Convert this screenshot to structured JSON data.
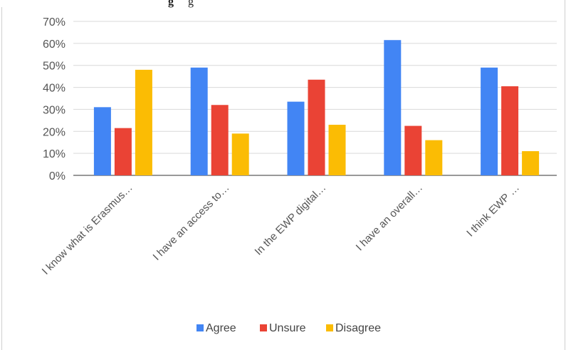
{
  "header_fragment": {
    "bold": "g",
    "rest": "g"
  },
  "chart_data": {
    "type": "bar",
    "categories": [
      "I know what is Erasmus…",
      "I have an access to…",
      "In the EWP digital…",
      "I have an overall…",
      "I think EWP …"
    ],
    "series": [
      {
        "name": "Agree",
        "color": "#4285f4",
        "values": [
          31,
          49,
          33.5,
          61.5,
          49
        ]
      },
      {
        "name": "Unsure",
        "color": "#ea4335",
        "values": [
          21.5,
          32,
          43.5,
          22.5,
          40.5
        ]
      },
      {
        "name": "Disagree",
        "color": "#fbbc04",
        "values": [
          48,
          19,
          23,
          16,
          11
        ]
      }
    ],
    "y_ticks": [
      "0%",
      "10%",
      "20%",
      "30%",
      "40%",
      "50%",
      "60%",
      "70%"
    ],
    "ylim": [
      0,
      70
    ],
    "grid": true,
    "legend_position": "bottom"
  }
}
